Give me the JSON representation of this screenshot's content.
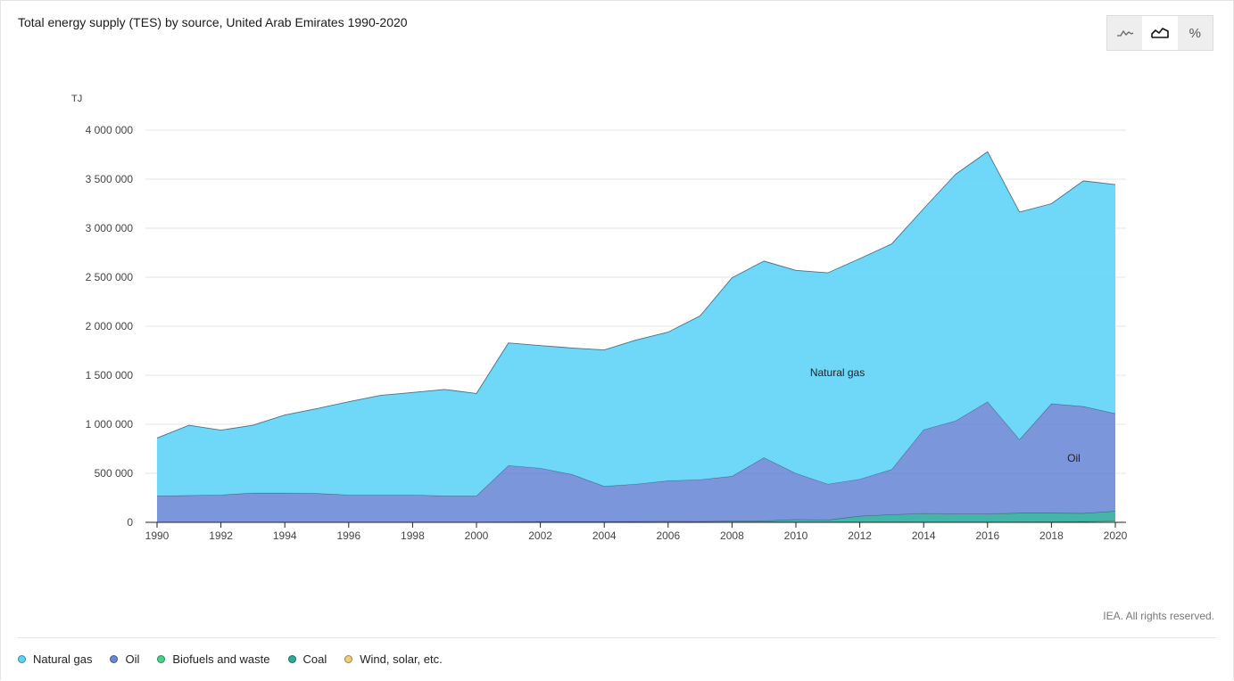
{
  "title": "Total energy supply (TES) by source, United Arab Emirates 1990-2020",
  "copyright": "IEA. All rights reserved.",
  "toggles": [
    {
      "icon": "line-chart-icon",
      "active": false
    },
    {
      "icon": "area-chart-icon",
      "active": true
    },
    {
      "icon": "percent-icon",
      "label": "%",
      "active": false
    }
  ],
  "legend": [
    {
      "name": "Natural gas",
      "color": "#5bd3f7"
    },
    {
      "name": "Oil",
      "color": "#6a87d7"
    },
    {
      "name": "Biofuels and waste",
      "color": "#3fd68a"
    },
    {
      "name": "Coal",
      "color": "#2aab9c"
    },
    {
      "name": "Wind, solar, etc.",
      "color": "#f2cc72"
    }
  ],
  "chart_data": {
    "type": "area",
    "stacked": true,
    "ylabel": "TJ",
    "ylim": [
      0,
      4000000
    ],
    "yticks": [
      0,
      500000,
      1000000,
      1500000,
      2000000,
      2500000,
      3000000,
      3500000,
      4000000
    ],
    "ytick_labels": [
      "0",
      "500 000",
      "1 000 000",
      "1 500 000",
      "2 000 000",
      "2 500 000",
      "3 000 000",
      "3 500 000",
      "4 000 000"
    ],
    "xlim": [
      1990,
      2020
    ],
    "xticks": [
      1990,
      1992,
      1994,
      1996,
      1998,
      2000,
      2002,
      2004,
      2006,
      2008,
      2010,
      2012,
      2014,
      2016,
      2018,
      2020
    ],
    "x": [
      1990,
      1991,
      1992,
      1993,
      1994,
      1995,
      1996,
      1997,
      1998,
      1999,
      2000,
      2001,
      2002,
      2003,
      2004,
      2005,
      2006,
      2007,
      2008,
      2009,
      2010,
      2011,
      2012,
      2013,
      2014,
      2015,
      2016,
      2017,
      2018,
      2019,
      2020
    ],
    "series": [
      {
        "name": "Wind, solar, etc.",
        "color": "#f2cc72",
        "values": [
          0,
          0,
          0,
          0,
          0,
          0,
          0,
          0,
          0,
          0,
          0,
          0,
          0,
          0,
          0,
          0,
          0,
          0,
          0,
          0,
          0,
          0,
          0,
          0,
          0,
          0,
          0,
          0,
          5000,
          8000,
          15000
        ]
      },
      {
        "name": "Coal",
        "color": "#2aab9c",
        "values": [
          0,
          0,
          0,
          0,
          0,
          0,
          0,
          0,
          0,
          0,
          0,
          5000,
          8000,
          8000,
          8000,
          10000,
          12000,
          10000,
          15000,
          15000,
          30000,
          25000,
          65000,
          80000,
          90000,
          85000,
          85000,
          95000,
          90000,
          85000,
          100000
        ]
      },
      {
        "name": "Biofuels and waste",
        "color": "#3fd68a",
        "values": [
          0,
          0,
          0,
          0,
          0,
          0,
          0,
          0,
          0,
          0,
          0,
          0,
          0,
          0,
          0,
          0,
          0,
          0,
          0,
          0,
          0,
          0,
          0,
          0,
          0,
          0,
          0,
          0,
          0,
          0,
          0
        ]
      },
      {
        "name": "Oil",
        "color": "#6a87d7",
        "values": [
          270000,
          275000,
          280000,
          300000,
          300000,
          295000,
          280000,
          280000,
          280000,
          270000,
          270000,
          575000,
          545000,
          480000,
          360000,
          380000,
          413000,
          425000,
          455000,
          645000,
          470000,
          365000,
          375000,
          460000,
          855000,
          950000,
          1145000,
          750000,
          1115000,
          1090000,
          995000
        ]
      },
      {
        "name": "Natural gas",
        "color": "#5bd3f7",
        "values": [
          590000,
          715000,
          660000,
          690000,
          795000,
          865000,
          950000,
          1015000,
          1045000,
          1085000,
          1045000,
          1250000,
          1250000,
          1290000,
          1390000,
          1470000,
          1515000,
          1670000,
          2025000,
          2005000,
          2070000,
          2155000,
          2250000,
          2300000,
          2255000,
          2515000,
          2550000,
          2320000,
          2040000,
          2300000,
          2335000
        ]
      }
    ],
    "annotations": [
      {
        "text": "Natural gas",
        "x": 2011.3,
        "y": 1490000
      },
      {
        "text": "Oil",
        "x": 2018.7,
        "y": 620000
      }
    ]
  }
}
